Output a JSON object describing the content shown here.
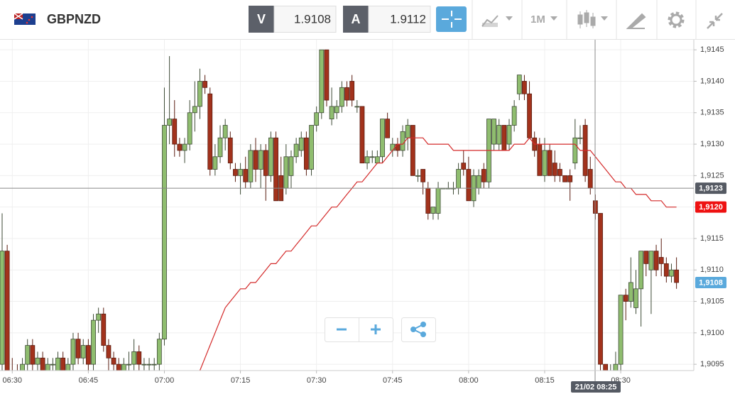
{
  "header": {
    "symbol": "GBPNZD",
    "bid_label": "V",
    "bid": "1.9108",
    "ask_label": "A",
    "ask": "1.9112",
    "timeframe": "1M"
  },
  "chart_data": {
    "type": "candlestick",
    "up_color": "#8fbd6f",
    "down_color": "#a2321c",
    "grid": true,
    "categories": [
      null,
      null,
      "06:30",
      null,
      null,
      null,
      null,
      null,
      null,
      null,
      null,
      null,
      null,
      null,
      null,
      null,
      null,
      "06:45",
      null,
      null,
      null,
      null,
      null,
      null,
      null,
      null,
      null,
      null,
      null,
      null,
      null,
      null,
      "07:00",
      null,
      null,
      null,
      null,
      null,
      null,
      null,
      null,
      null,
      null,
      null,
      null,
      null,
      null,
      "07:15",
      null,
      null,
      null,
      null,
      null,
      null,
      null,
      null,
      null,
      null,
      null,
      null,
      null,
      null,
      "07:30",
      null,
      null,
      null,
      null,
      null,
      null,
      null,
      null,
      null,
      null,
      null,
      null,
      null,
      null,
      "07:45",
      null,
      null,
      null,
      null,
      null,
      null,
      null,
      null,
      null,
      null,
      null,
      null,
      null,
      null,
      "08:00",
      null,
      null,
      null,
      null,
      null,
      null,
      null,
      null,
      null,
      null,
      null,
      null,
      null,
      null,
      "08:15",
      null,
      null,
      null,
      null,
      null,
      null,
      null,
      null,
      null,
      null,
      null,
      null,
      null,
      null,
      "08:30",
      null,
      null,
      null,
      null,
      null,
      null,
      null,
      null,
      null,
      null,
      null
    ],
    "open": [
      1.9095,
      1.9113,
      1.9094,
      1.9093,
      1.9092,
      1.9095,
      1.9098,
      1.9095,
      1.9096,
      1.9094,
      1.9095,
      1.9094,
      1.9096,
      1.9094,
      1.9095,
      1.9099,
      1.9096,
      1.9098,
      1.9095,
      1.9102,
      1.9103,
      1.9098,
      1.9096,
      1.9095,
      1.9094,
      1.9095,
      1.9095,
      1.9097,
      1.9095,
      1.9095,
      1.9095,
      1.9095,
      1.9099,
      1.9133,
      1.9134,
      1.913,
      1.9129,
      1.913,
      1.9135,
      1.9136,
      1.914,
      1.9138,
      1.9126,
      1.9128,
      1.9131,
      1.9131,
      1.9126,
      1.9125,
      1.9126,
      1.9124,
      1.9129,
      1.9126,
      1.9129,
      1.9125,
      1.9131,
      1.9125,
      1.9123,
      1.9125,
      1.9128,
      1.9129,
      1.9131,
      1.9126,
      1.9133,
      1.9135,
      1.9145,
      1.9134,
      1.9135,
      1.9136,
      1.9139,
      1.914,
      1.9136,
      1.9136,
      1.9127,
      1.9128,
      1.9127,
      1.9128,
      1.9134,
      1.9129,
      1.913,
      1.9129,
      1.9131,
      1.9133,
      1.9125,
      1.9126,
      1.9123,
      1.9119,
      1.9119,
      1.9123,
      1.9123,
      1.9123,
      1.9123,
      1.9127,
      1.9126,
      1.9121,
      1.9123,
      1.9126,
      1.9124,
      1.913,
      1.913,
      1.9133,
      1.913,
      1.9133,
      1.9138,
      1.914,
      1.9138,
      1.9131,
      1.913,
      1.9125,
      1.9129,
      1.9127,
      1.9126,
      1.9125,
      1.9125,
      1.9127,
      1.9131,
      1.9133,
      1.9126,
      1.9121,
      1.9119,
      1.9095,
      1.9094,
      1.9094,
      1.9095,
      1.9106,
      1.9105,
      1.9104,
      1.9107,
      1.9113,
      1.911,
      1.9113,
      1.9112,
      1.9111,
      1.9109,
      1.911
    ],
    "high": [
      1.9119,
      1.9114,
      1.9096,
      1.9095,
      1.9096,
      1.9099,
      1.9099,
      1.9097,
      1.9097,
      1.9096,
      1.9096,
      1.9097,
      1.9097,
      1.9096,
      1.91,
      1.91,
      1.9099,
      1.9099,
      1.9103,
      1.9104,
      1.9104,
      1.9099,
      1.9097,
      1.9096,
      1.9096,
      1.9097,
      1.9099,
      1.9098,
      1.9096,
      1.9096,
      1.9096,
      1.91,
      1.9139,
      1.9144,
      1.9137,
      1.9131,
      1.9131,
      1.9137,
      1.914,
      1.9142,
      1.9141,
      1.9139,
      1.913,
      1.9133,
      1.9134,
      1.9132,
      1.9127,
      1.9127,
      1.9128,
      1.913,
      1.9131,
      1.913,
      1.913,
      1.9132,
      1.9132,
      1.9128,
      1.913,
      1.9129,
      1.9131,
      1.9132,
      1.9132,
      1.9133,
      1.9136,
      1.9145,
      1.9145,
      1.9139,
      1.9137,
      1.914,
      1.914,
      1.9141,
      1.9137,
      1.9136,
      1.9129,
      1.9129,
      1.9129,
      1.9134,
      1.9135,
      1.9131,
      1.9131,
      1.9133,
      1.9134,
      1.9133,
      1.9126,
      1.9126,
      1.9124,
      1.912,
      1.9124,
      1.9123,
      1.9124,
      1.9124,
      1.9127,
      1.9129,
      1.9128,
      1.9126,
      1.9126,
      1.9127,
      1.9134,
      1.9134,
      1.9134,
      1.9133,
      1.9134,
      1.9137,
      1.9141,
      1.9141,
      1.914,
      1.9132,
      1.9131,
      1.9131,
      1.913,
      1.9129,
      1.9127,
      1.9125,
      1.9126,
      1.9134,
      1.9133,
      1.9134,
      1.9128,
      1.9122,
      1.9119,
      1.9095,
      1.9095,
      1.9097,
      1.9106,
      1.9107,
      1.9112,
      1.911,
      1.9113,
      1.9113,
      1.9113,
      1.9114,
      1.9115,
      1.9112,
      1.9111,
      1.9112
    ],
    "low": [
      1.9094,
      1.9093,
      1.9092,
      1.9091,
      1.9091,
      1.9094,
      1.9094,
      1.9093,
      1.9093,
      1.9092,
      1.9094,
      1.9093,
      1.9093,
      1.9093,
      1.9094,
      1.9095,
      1.9095,
      1.9094,
      1.9094,
      1.91,
      1.9097,
      1.9094,
      1.9094,
      1.9093,
      1.9093,
      1.9094,
      1.9094,
      1.9094,
      1.9094,
      1.9094,
      1.9094,
      1.9094,
      1.9098,
      1.913,
      1.9128,
      1.9128,
      1.9127,
      1.9129,
      1.9132,
      1.9134,
      1.9138,
      1.9125,
      1.9125,
      1.9127,
      1.9129,
      1.9126,
      1.9124,
      1.9122,
      1.9123,
      1.9123,
      1.9124,
      1.9123,
      1.9121,
      1.9124,
      1.9121,
      1.9121,
      1.9122,
      1.9123,
      1.9127,
      1.9128,
      1.9125,
      1.9125,
      1.9132,
      1.9134,
      1.9136,
      1.9133,
      1.9134,
      1.9135,
      1.9136,
      1.9136,
      1.9135,
      1.9127,
      1.9126,
      1.9127,
      1.9127,
      1.9127,
      1.9131,
      1.9128,
      1.9128,
      1.9128,
      1.9129,
      1.9125,
      1.9124,
      1.9122,
      1.9118,
      1.9118,
      1.9118,
      1.9123,
      1.9123,
      1.9122,
      1.9122,
      1.9125,
      1.9121,
      1.912,
      1.9122,
      1.9123,
      1.9123,
      1.9129,
      1.9129,
      1.9129,
      1.9129,
      1.9132,
      1.9137,
      1.9137,
      1.9131,
      1.9128,
      1.9125,
      1.9124,
      1.9125,
      1.9124,
      1.9124,
      1.9124,
      1.9121,
      1.9126,
      1.913,
      1.9124,
      1.9122,
      1.9118,
      1.9094,
      1.9094,
      1.9093,
      1.9093,
      1.9094,
      1.9102,
      1.9104,
      1.9103,
      1.9101,
      1.9109,
      1.9103,
      1.9109,
      1.9109,
      1.9108,
      1.9108,
      1.9107
    ],
    "close": [
      1.9113,
      1.9094,
      1.9093,
      1.9092,
      1.9095,
      1.9098,
      1.9095,
      1.9096,
      1.9094,
      1.9095,
      1.9095,
      1.9096,
      1.9094,
      1.9095,
      1.9099,
      1.9096,
      1.9098,
      1.9095,
      1.9102,
      1.9103,
      1.9098,
      1.9096,
      1.9095,
      1.9094,
      1.9095,
      1.9095,
      1.9097,
      1.9095,
      1.9095,
      1.9095,
      1.9095,
      1.9099,
      1.9133,
      1.9134,
      1.913,
      1.9129,
      1.913,
      1.9135,
      1.9136,
      1.914,
      1.9139,
      1.9126,
      1.9128,
      1.9131,
      1.9133,
      1.9127,
      1.9125,
      1.9126,
      1.9124,
      1.9129,
      1.9126,
      1.9129,
      1.9125,
      1.9131,
      1.9121,
      1.9121,
      1.9128,
      1.9128,
      1.913,
      1.9131,
      1.9126,
      1.9133,
      1.9135,
      1.9145,
      1.9137,
      1.9136,
      1.9136,
      1.9139,
      1.9137,
      1.9137,
      1.9136,
      1.9127,
      1.9128,
      1.9128,
      1.9128,
      1.9134,
      1.9131,
      1.913,
      1.9129,
      1.9132,
      1.9133,
      1.9125,
      1.9125,
      1.9124,
      1.9119,
      1.912,
      1.9123,
      1.9123,
      1.9123,
      1.9123,
      1.9126,
      1.9126,
      1.9121,
      1.9125,
      1.9125,
      1.9124,
      1.9134,
      1.9134,
      1.9133,
      1.9129,
      1.9133,
      1.9136,
      1.9141,
      1.9138,
      1.9131,
      1.9129,
      1.9125,
      1.9129,
      1.9125,
      1.9125,
      1.9125,
      1.9124,
      1.9124,
      1.9131,
      1.9131,
      1.9125,
      1.9123,
      1.9119,
      1.9095,
      1.9094,
      1.9094,
      1.9095,
      1.9106,
      1.9105,
      1.9108,
      1.9107,
      1.9113,
      1.9111,
      1.9113,
      1.911,
      1.9111,
      1.9109,
      1.911,
      1.9108
    ],
    "ma": {
      "color": "#d42a2a",
      "values": [
        null,
        null,
        null,
        null,
        null,
        null,
        null,
        null,
        null,
        null,
        null,
        null,
        null,
        null,
        null,
        null,
        null,
        null,
        null,
        null,
        null,
        null,
        null,
        null,
        null,
        null,
        null,
        null,
        null,
        null,
        null,
        null,
        null,
        null,
        null,
        null,
        null,
        null,
        null,
        1.9094,
        1.9096,
        1.9098,
        1.91,
        1.9102,
        1.9104,
        1.9105,
        1.9106,
        1.9107,
        1.9107,
        1.9108,
        1.9108,
        1.9109,
        1.911,
        1.9111,
        1.9111,
        1.9112,
        1.9113,
        1.9113,
        1.9114,
        1.9115,
        1.9116,
        1.9117,
        1.9117,
        1.9118,
        1.9119,
        1.912,
        1.912,
        1.9121,
        1.9122,
        1.9123,
        1.9124,
        1.9124,
        1.9125,
        1.9126,
        1.9127,
        1.9127,
        1.9128,
        1.9129,
        1.913,
        1.913,
        1.9131,
        1.9131,
        1.9131,
        1.9131,
        1.913,
        1.913,
        1.913,
        1.913,
        1.913,
        1.9129,
        1.9129,
        1.9129,
        1.9129,
        1.9129,
        1.9129,
        1.9129,
        1.9129,
        1.9129,
        1.9129,
        1.9129,
        1.9129,
        1.913,
        1.913,
        1.913,
        1.9131,
        1.913,
        1.913,
        1.913,
        1.913,
        1.913,
        1.913,
        1.913,
        1.913,
        1.913,
        1.9129,
        1.9129,
        1.9129,
        1.9128,
        1.9127,
        1.9126,
        1.9125,
        1.9124,
        1.9124,
        1.9123,
        1.9123,
        1.9122,
        1.9122,
        1.9122,
        1.9121,
        1.9121,
        1.9121,
        1.912,
        1.912,
        1.912
      ]
    },
    "ylim": [
      1.9094,
      1.91466
    ],
    "yticks": [
      {
        "value": 1.9095,
        "label": "1,9095"
      },
      {
        "value": 1.91,
        "label": "1,9100"
      },
      {
        "value": 1.9105,
        "label": "1,9105"
      },
      {
        "value": 1.911,
        "label": "1,9110"
      },
      {
        "value": 1.9115,
        "label": "1,9115"
      },
      {
        "value": 1.912,
        "label": "1,9120"
      },
      {
        "value": 1.9125,
        "label": "1,9125"
      },
      {
        "value": 1.913,
        "label": "1,9130"
      },
      {
        "value": 1.9135,
        "label": "1,9135"
      },
      {
        "value": 1.914,
        "label": "1,9140"
      },
      {
        "value": 1.9145,
        "label": "1,9145"
      }
    ],
    "tags": [
      {
        "value": 1.9123,
        "label": "1,9123",
        "color": "#555a63"
      },
      {
        "value": 1.912,
        "label": "1,9120",
        "color": "#ee1111"
      },
      {
        "value": 1.9108,
        "label": "1,9108",
        "color": "#5aa9dc"
      }
    ],
    "crosshair_time": "21/02 08:25"
  }
}
